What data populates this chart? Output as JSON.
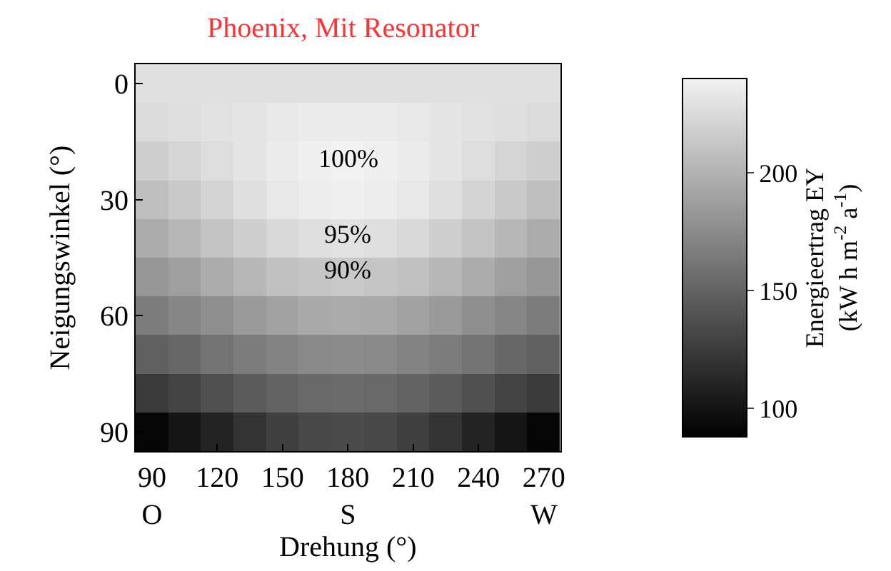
{
  "chart_data": {
    "type": "heatmap",
    "title": "Phoenix, Mit Resonator",
    "xlabel": "Drehung (°)",
    "ylabel": "Neigungswinkel (°)",
    "clabel": "Energieertrag EY\n(kW h m$^{-2}$ a$^{-1}$)",
    "categories": [
      "90\nO",
      null,
      "120",
      null,
      "150",
      null,
      "180\nS",
      null,
      "210",
      null,
      "240",
      null,
      "270\nW"
    ],
    "y_categories": [
      "0",
      null,
      null,
      "30",
      null,
      null,
      "60",
      null,
      null,
      "90"
    ],
    "cells": [
      [
        229,
        229,
        229,
        229,
        229,
        229,
        229,
        229,
        229,
        229,
        229,
        229,
        229
      ],
      [
        226,
        228,
        230,
        232,
        234,
        236,
        236,
        236,
        234,
        232,
        230,
        228,
        226
      ],
      [
        218,
        222,
        227,
        232,
        236,
        239,
        240,
        239,
        236,
        232,
        227,
        222,
        218
      ],
      [
        208,
        214,
        221,
        228,
        234,
        237,
        239,
        237,
        234,
        228,
        221,
        214,
        208
      ],
      [
        196,
        203,
        211,
        218,
        224,
        228,
        230,
        228,
        224,
        218,
        211,
        203,
        196
      ],
      [
        182,
        188,
        196,
        203,
        209,
        212,
        214,
        212,
        209,
        203,
        196,
        188,
        182
      ],
      [
        166,
        172,
        178,
        185,
        190,
        194,
        195,
        194,
        190,
        185,
        178,
        172,
        166
      ],
      [
        148,
        153,
        160,
        166,
        170,
        174,
        175,
        174,
        170,
        166,
        160,
        153,
        148
      ],
      [
        125,
        131,
        138,
        145,
        150,
        154,
        155,
        154,
        150,
        145,
        138,
        131,
        125
      ],
      [
        92,
        101,
        110,
        120,
        128,
        133,
        135,
        133,
        128,
        120,
        110,
        101,
        92
      ]
    ],
    "annotations": [
      "100%",
      "95%",
      "90%"
    ],
    "clim": [
      88,
      240
    ],
    "cticks": [
      100,
      150,
      200
    ]
  }
}
